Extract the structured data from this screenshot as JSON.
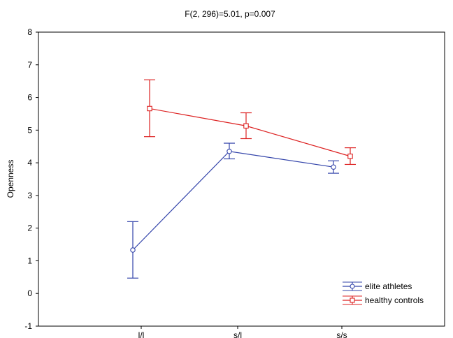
{
  "chart_data": {
    "type": "line",
    "title": "F(2, 296)=5.01, p=0.007",
    "xlabel": "",
    "ylabel": "Openness",
    "categories": [
      "l/l",
      "s/l",
      "s/s"
    ],
    "ylim": [
      -1,
      8
    ],
    "yticks": [
      "-1",
      "0",
      "1",
      "2",
      "3",
      "4",
      "5",
      "6",
      "7",
      "8"
    ],
    "grid": false,
    "legend_position": "bottom-right",
    "series": [
      {
        "name": "elite athletes",
        "color": "#3344aa",
        "marker": "circle",
        "values": [
          1.33,
          4.35,
          3.87
        ],
        "err_low": [
          0.47,
          4.12,
          3.68
        ],
        "err_high": [
          2.2,
          4.6,
          4.06
        ]
      },
      {
        "name": "healthy controls",
        "color": "#dd2222",
        "marker": "square",
        "values": [
          5.66,
          5.13,
          4.2
        ],
        "err_low": [
          4.8,
          4.74,
          3.95
        ],
        "err_high": [
          6.54,
          5.53,
          4.46
        ]
      }
    ]
  }
}
